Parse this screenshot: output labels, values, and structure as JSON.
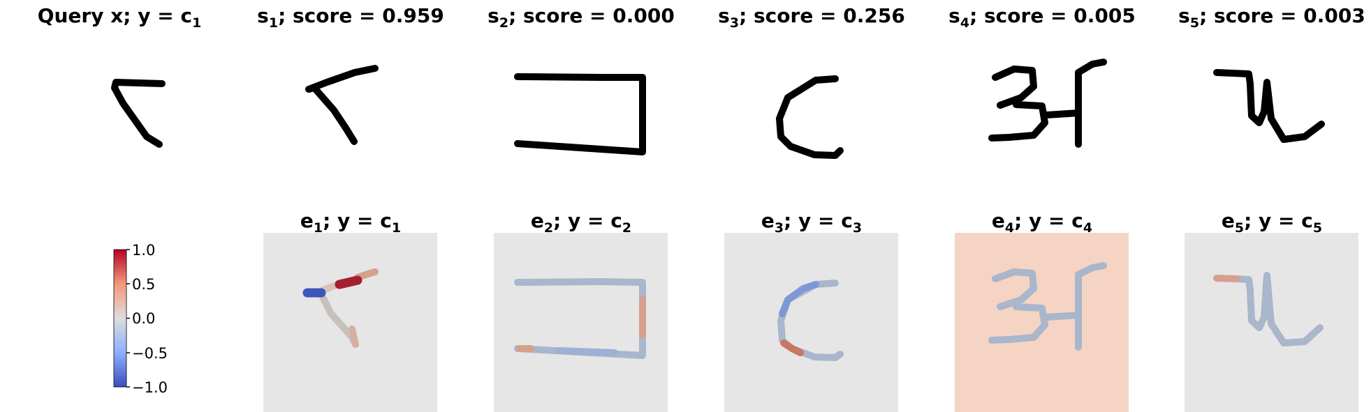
{
  "figure": {
    "query": {
      "title": "Query x; y = c",
      "title_sub": "1"
    },
    "samples": [
      {
        "prefix": "s",
        "index": "5",
        "score_text": "; score = 0.003",
        "score": 0.003
      },
      {
        "prefix": "s",
        "index": "1",
        "score_text": "; score = 0.959",
        "score": 0.959
      },
      {
        "prefix": "s",
        "index": "2",
        "score_text": "; score = 0.000",
        "score": 0.0
      },
      {
        "prefix": "s",
        "index": "3",
        "score_text": "; score = 0.256",
        "score": 0.256
      },
      {
        "prefix": "s",
        "index": "4",
        "score_text": "; score = 0.005",
        "score": 0.005
      }
    ],
    "explanations": [
      {
        "prefix": "e",
        "index": "1",
        "label": "; y = c",
        "label_sub": "1",
        "background_value": 0.0
      },
      {
        "prefix": "e",
        "index": "2",
        "label": "; y = c",
        "label_sub": "2",
        "background_value": 0.0
      },
      {
        "prefix": "e",
        "index": "3",
        "label": "; y = c",
        "label_sub": "3",
        "background_value": 0.0
      },
      {
        "prefix": "e",
        "index": "4",
        "label": "; y = c",
        "label_sub": "4",
        "background_value": 0.25
      },
      {
        "prefix": "e",
        "index": "5",
        "label": "; y = c",
        "label_sub": "5",
        "background_value": 0.0
      }
    ]
  },
  "chart_data": {
    "type": "heatmap",
    "colormap": "coolwarm",
    "colorbar": {
      "range": [
        -1.0,
        1.0
      ],
      "ticks": [
        1.0,
        0.5,
        0.0,
        -0.5,
        -1.0
      ],
      "tick_labels": [
        "1.0",
        "0.5",
        "0.0",
        "−0.5",
        "−1.0"
      ]
    },
    "scores": [
      0.959,
      0.0,
      0.256,
      0.005,
      0.003
    ]
  },
  "colors": {
    "background_neutral": "#e6e6e6",
    "background_e4": "#f5d4c4",
    "stroke_neutral": "#a9b6cc",
    "stroke_red_strong": "#a51f2e",
    "stroke_red_light": "#d5a08c",
    "stroke_blue_strong": "#3d57b8",
    "stroke_blue_light": "#7d98d6",
    "ink": "#000000"
  }
}
